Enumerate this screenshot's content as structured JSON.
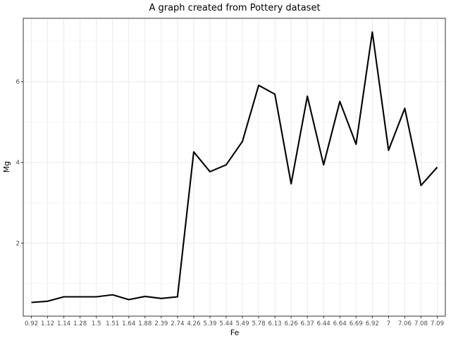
{
  "chart_data": {
    "type": "line",
    "title": "A graph created from Pottery dataset",
    "xlabel": "Fe",
    "ylabel": "Mg",
    "categories": [
      "0.92",
      "1.12",
      "1.14",
      "1.28",
      "1.5",
      "1.51",
      "1.64",
      "1.88",
      "2.39",
      "2.74",
      "4.26",
      "5.39",
      "5.44",
      "5.49",
      "5.78",
      "6.13",
      "6.26",
      "6.37",
      "6.44",
      "6.64",
      "6.69",
      "6.92",
      "7",
      "7.06",
      "7.08",
      "7.09"
    ],
    "values": [
      0.53,
      0.56,
      0.67,
      0.67,
      0.67,
      0.72,
      0.6,
      0.68,
      0.63,
      0.67,
      4.26,
      3.77,
      3.94,
      4.52,
      5.91,
      5.69,
      3.47,
      5.64,
      3.94,
      5.51,
      4.45,
      7.23,
      4.3,
      5.34,
      3.43,
      3.88
    ],
    "yticks": [
      2,
      4,
      6
    ],
    "ylim": [
      0.19,
      7.57
    ],
    "grid": true,
    "line_color": "#000000",
    "grid_color": "#ebebeb",
    "panel_border_color": "#333333"
  }
}
